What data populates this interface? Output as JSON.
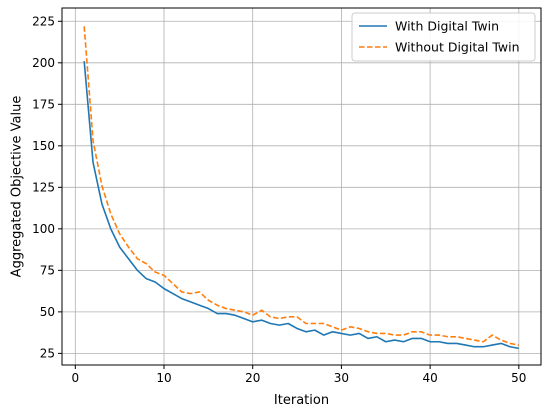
{
  "chart_data": {
    "type": "line",
    "xlabel": "Iteration",
    "ylabel": "Aggregated Objective Value",
    "xlim": [
      -1.5,
      52.5
    ],
    "ylim": [
      18,
      233
    ],
    "xticks": [
      0,
      10,
      20,
      30,
      40,
      50
    ],
    "yticks": [
      25,
      50,
      75,
      100,
      125,
      150,
      175,
      200,
      225
    ],
    "grid": true,
    "legend": {
      "position": "top-right"
    },
    "x": [
      1,
      2,
      3,
      4,
      5,
      6,
      7,
      8,
      9,
      10,
      11,
      12,
      13,
      14,
      15,
      16,
      17,
      18,
      19,
      20,
      21,
      22,
      23,
      24,
      25,
      26,
      27,
      28,
      29,
      30,
      31,
      32,
      33,
      34,
      35,
      36,
      37,
      38,
      39,
      40,
      41,
      42,
      43,
      44,
      45,
      46,
      47,
      48,
      49,
      50
    ],
    "series": [
      {
        "name": "With Digital Twin",
        "color": "#1f77b4",
        "style": "solid",
        "values": [
          201,
          140,
          115,
          100,
          89,
          82,
          75,
          70,
          68,
          64,
          61,
          58,
          56,
          54,
          52,
          49,
          49,
          48,
          46,
          44,
          45,
          43,
          42,
          43,
          40,
          38,
          39,
          36,
          38,
          37,
          36,
          37,
          34,
          35,
          32,
          33,
          32,
          34,
          34,
          32,
          32,
          31,
          31,
          30,
          29,
          29,
          30,
          31,
          29,
          28
        ]
      },
      {
        "name": "Without Digital Twin",
        "color": "#ff7f0e",
        "style": "dashed",
        "values": [
          222,
          153,
          126,
          109,
          97,
          89,
          82,
          79,
          74,
          72,
          67,
          62,
          61,
          62,
          57,
          54,
          52,
          51,
          50,
          48,
          51,
          47,
          46,
          47,
          47,
          43,
          43,
          43,
          41,
          39,
          41,
          40,
          38,
          37,
          37,
          36,
          36,
          38,
          38,
          36,
          36,
          35,
          35,
          34,
          33,
          32,
          36,
          33,
          31,
          30
        ]
      }
    ]
  }
}
